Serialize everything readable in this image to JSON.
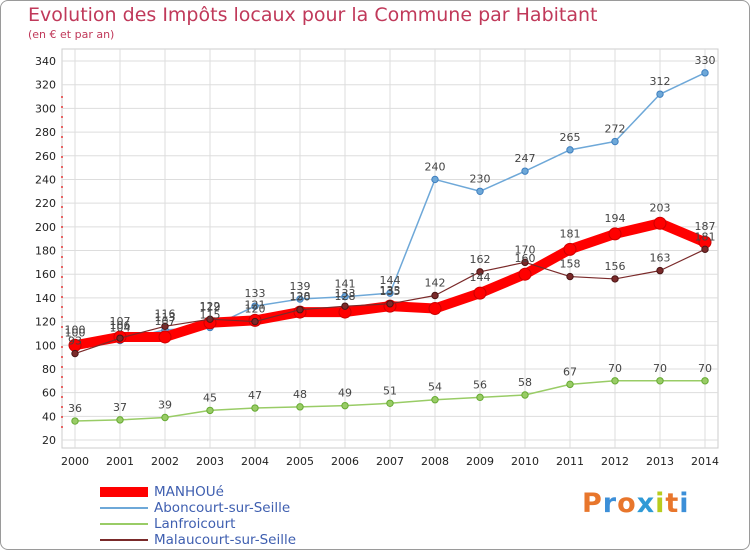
{
  "header": {
    "title": "Evolution des Impôts locaux pour la Commune par Habitant",
    "subtitle": "(en € et par an)"
  },
  "logo": {
    "text": "Proxiti",
    "colors": [
      "#e8762c",
      "#3c8fd8",
      "#e8762c",
      "#2f9ad6",
      "#b8cc1e",
      "#e8762c",
      "#3c8fd8"
    ]
  },
  "chart_data": {
    "type": "line",
    "title": "Evolution des Impôts locaux pour la Commune par Habitant",
    "subtitle": "(en € et par an)",
    "xlabel": "",
    "ylabel": "",
    "x": [
      "2000",
      "2001",
      "2002",
      "2003",
      "2004",
      "2005",
      "2006",
      "2007",
      "2008",
      "2009",
      "2010",
      "2011",
      "2012",
      "2013",
      "2014"
    ],
    "yticks": [
      20,
      40,
      60,
      80,
      100,
      120,
      140,
      160,
      180,
      200,
      220,
      240,
      260,
      280,
      300,
      320,
      340
    ],
    "ylim": [
      20,
      340
    ],
    "grid": true,
    "legend": "bottom-left",
    "series": [
      {
        "name": "MANHOUé",
        "color": "#ff0000",
        "values": [
          100,
          107,
          107,
          119,
          121,
          128,
          128,
          133,
          131,
          144,
          160,
          181,
          194,
          203,
          187
        ],
        "labels": [
          true,
          true,
          true,
          true,
          true,
          true,
          true,
          true,
          false,
          true,
          true,
          true,
          true,
          true,
          true
        ]
      },
      {
        "name": "Aboncourt-sur-Seille",
        "color": "#6ea8d8",
        "values": [
          100,
          104,
          113,
          115,
          133,
          139,
          141,
          144,
          240,
          230,
          247,
          265,
          272,
          312,
          330
        ],
        "labels": [
          true,
          true,
          true,
          true,
          true,
          true,
          true,
          true,
          true,
          true,
          true,
          true,
          true,
          true,
          true
        ]
      },
      {
        "name": "Lanfroicourt",
        "color": "#99cc66",
        "values": [
          36,
          37,
          39,
          45,
          47,
          48,
          49,
          51,
          54,
          56,
          58,
          67,
          70,
          70,
          70
        ],
        "labels": [
          true,
          true,
          true,
          true,
          true,
          true,
          true,
          true,
          true,
          true,
          true,
          true,
          true,
          true,
          true
        ]
      },
      {
        "name": "Malaucourt-sur-Seille",
        "color": "#7a2a2a",
        "values": [
          93,
          106,
          116,
          122,
          120,
          130,
          133,
          135,
          142,
          162,
          170,
          158,
          156,
          163,
          181
        ],
        "labels": [
          true,
          true,
          true,
          true,
          true,
          true,
          true,
          true,
          true,
          true,
          true,
          true,
          true,
          true,
          true
        ]
      }
    ]
  }
}
